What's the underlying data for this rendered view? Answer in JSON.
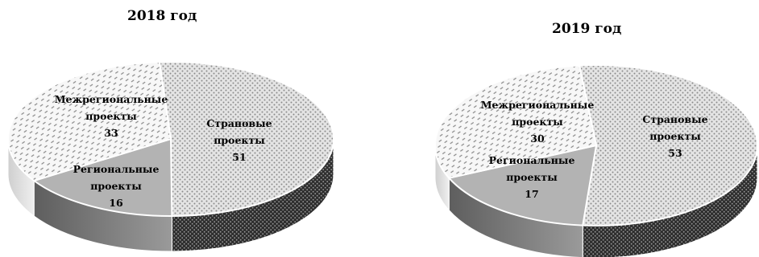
{
  "chart_data": [
    {
      "type": "pie",
      "title": "2018 год",
      "categories": [
        "Страновые проекты",
        "Региональные проекты",
        "Межрегиональные проекты"
      ],
      "values": [
        51,
        16,
        33
      ],
      "labels": [
        [
          "Страновые",
          "проекты",
          "51"
        ],
        [
          "Региональные",
          "проекты",
          "16"
        ],
        [
          "Межрегиональные",
          "проекты",
          "33"
        ]
      ],
      "style": "3d"
    },
    {
      "type": "pie",
      "title": "2019 год",
      "categories": [
        "Страновые проекты",
        "Региональные проекты",
        "Межрегиональные проекты"
      ],
      "values": [
        53,
        17,
        30
      ],
      "labels": [
        [
          "Страновые",
          "проекты",
          "53"
        ],
        [
          "Региональные",
          "проекты",
          "17"
        ],
        [
          "Межрегиональные",
          "проекты",
          "30"
        ]
      ],
      "style": "3d"
    }
  ],
  "colors": {
    "country": "#e2e2e2",
    "regional": "#b3b3b3",
    "interregional": "#f3f3f3",
    "side_dark": "#3a3a3a",
    "side_regional": "#7a7a7a"
  }
}
